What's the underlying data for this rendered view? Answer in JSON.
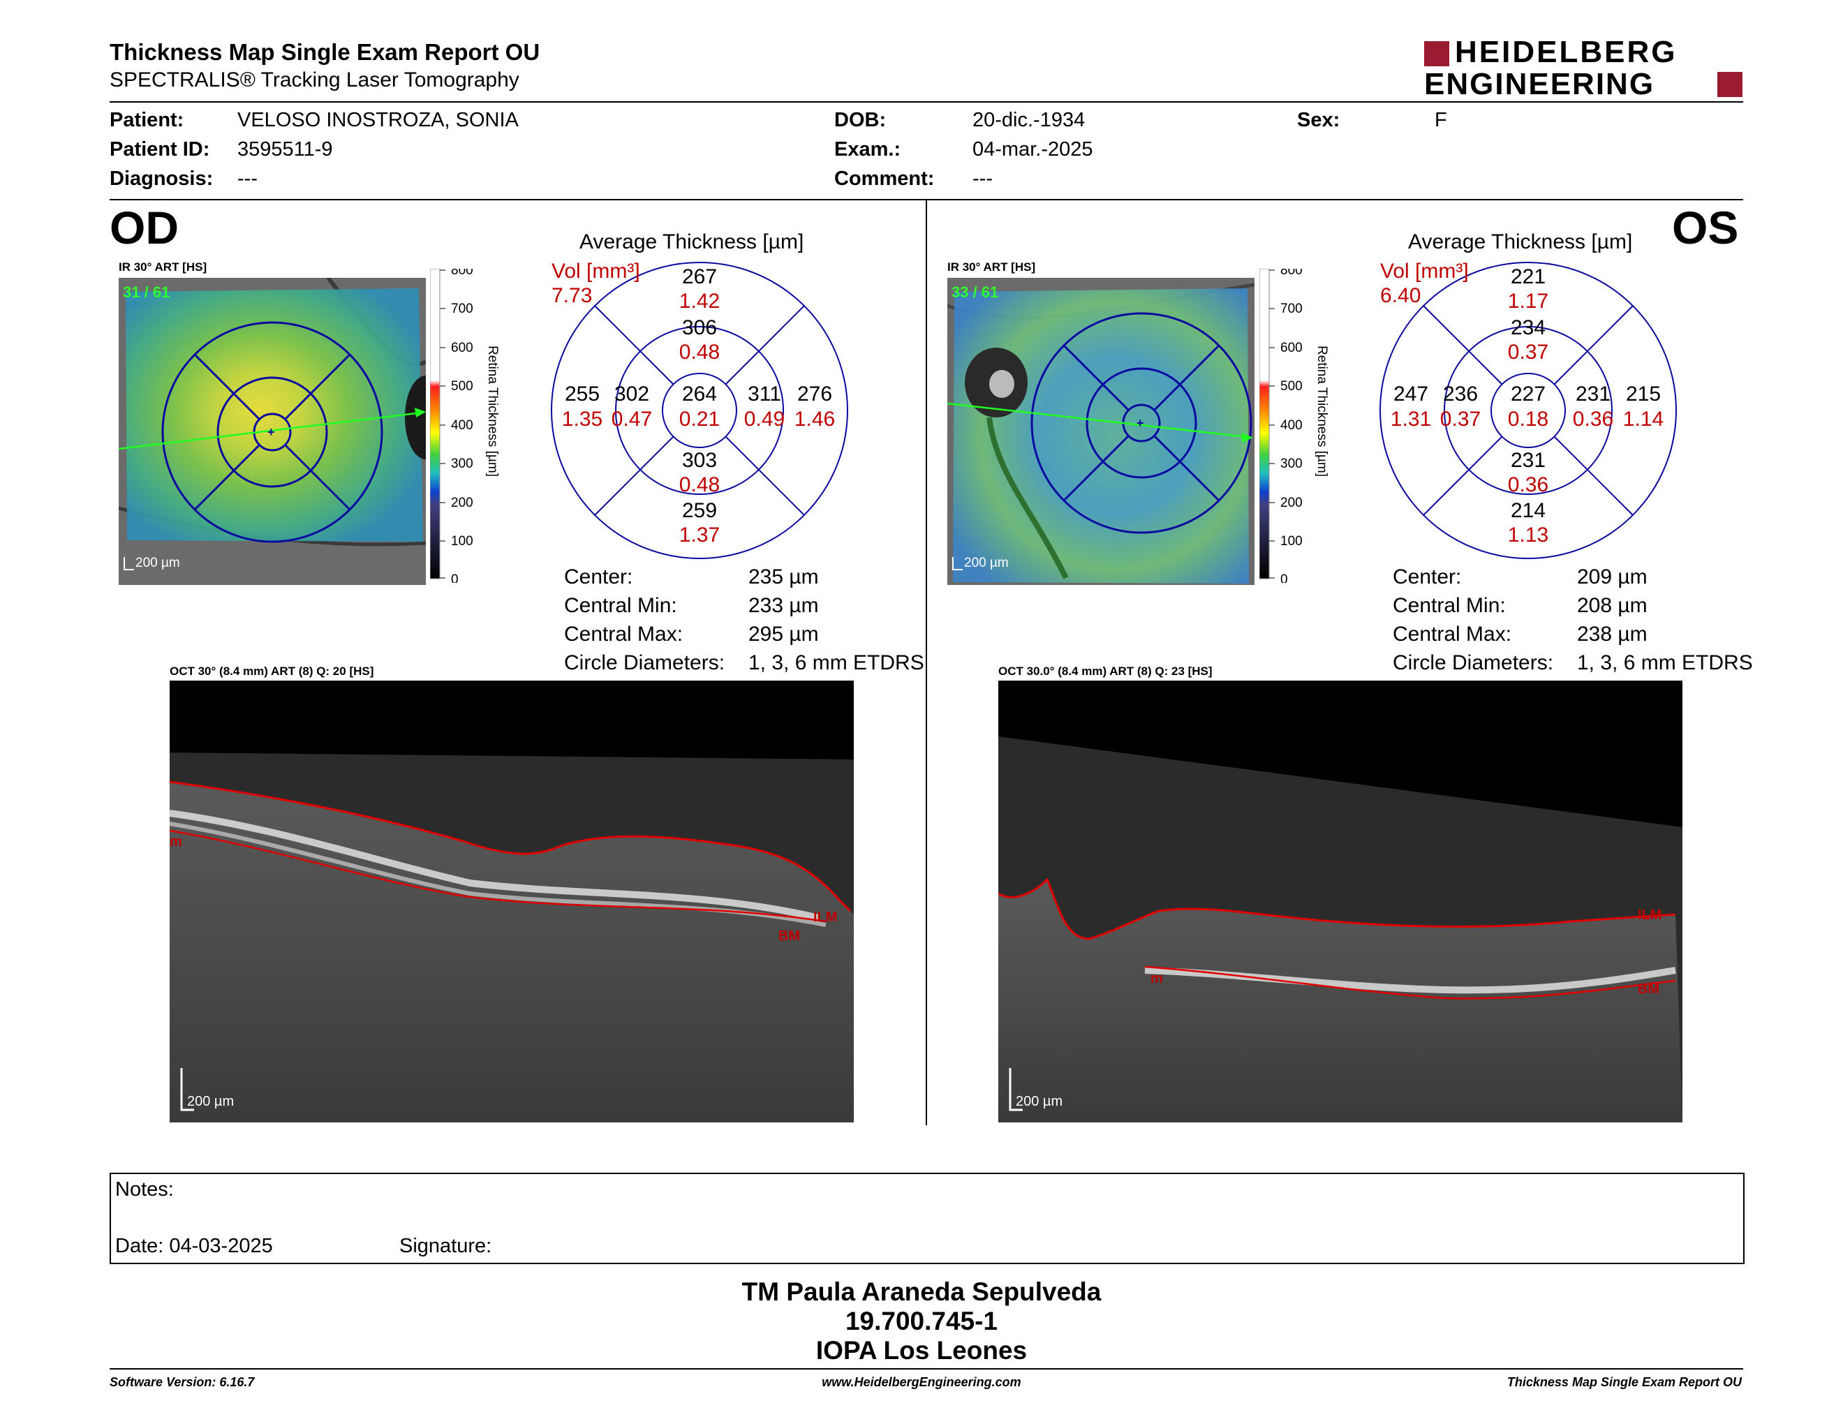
{
  "header": {
    "title": "Thickness Map Single Exam Report OU",
    "subtitle": "SPECTRALIS® Tracking Laser Tomography",
    "logo_line1": "HEIDELBERG",
    "logo_line2": "ENGINEERING"
  },
  "patient": {
    "patient_label": "Patient:",
    "patient_value": "VELOSO INOSTROZA, SONIA",
    "id_label": "Patient ID:",
    "id_value": "3595511-9",
    "diag_label": "Diagnosis:",
    "diag_value": "---",
    "dob_label": "DOB:",
    "dob_value": "20-dic.-1934",
    "exam_label": "Exam.:",
    "exam_value": "04-mar.-2025",
    "comment_label": "Comment:",
    "comment_value": "---",
    "sex_label": "Sex:",
    "sex_value": "F"
  },
  "colorbar": {
    "ticks": [
      "800",
      "700",
      "600",
      "500",
      "400",
      "300",
      "200",
      "100",
      "0"
    ],
    "title": "Retina Thickness [µm]"
  },
  "od": {
    "eye": "OD",
    "ir_title": "IR 30° ART [HS]",
    "frame_count": "31 / 61",
    "scale": "200 µm",
    "avg_title": "Average Thickness [µm]",
    "vol_label": "Vol [mm³]",
    "vol_total": "7.73",
    "sectors": {
      "outer_sup": {
        "t": "267",
        "v": "1.42"
      },
      "inner_sup": {
        "t": "306",
        "v": "0.48"
      },
      "outer_left": {
        "t": "255",
        "v": "1.35"
      },
      "inner_left": {
        "t": "302",
        "v": "0.47"
      },
      "center": {
        "t": "264",
        "v": "0.21"
      },
      "inner_right": {
        "t": "311",
        "v": "0.49"
      },
      "outer_right": {
        "t": "276",
        "v": "1.46"
      },
      "inner_inf": {
        "t": "303",
        "v": "0.48"
      },
      "outer_inf": {
        "t": "259",
        "v": "1.37"
      }
    },
    "stats": {
      "center_label": "Center:",
      "center_value": "235 µm",
      "min_label": "Central Min:",
      "min_value": "233 µm",
      "max_label": "Central Max:",
      "max_value": "295 µm",
      "circ_label": "Circle Diameters:",
      "circ_value": "1, 3, 6 mm ETDRS"
    },
    "oct_title": "OCT 30° (8.4 mm) ART (8) Q: 20 [HS]",
    "oct_scale": "200 µm",
    "oct_labels": {
      "m": "m",
      "ilm": "ILM",
      "bm": "BM"
    }
  },
  "os": {
    "eye": "OS",
    "ir_title": "IR 30° ART [HS]",
    "frame_count": "33 / 61",
    "scale": "200 µm",
    "avg_title": "Average Thickness [µm]",
    "vol_label": "Vol [mm³]",
    "vol_total": "6.40",
    "sectors": {
      "outer_sup": {
        "t": "221",
        "v": "1.17"
      },
      "inner_sup": {
        "t": "234",
        "v": "0.37"
      },
      "outer_left": {
        "t": "247",
        "v": "1.31"
      },
      "inner_left": {
        "t": "236",
        "v": "0.37"
      },
      "center": {
        "t": "227",
        "v": "0.18"
      },
      "inner_right": {
        "t": "231",
        "v": "0.36"
      },
      "outer_right": {
        "t": "215",
        "v": "1.14"
      },
      "inner_inf": {
        "t": "231",
        "v": "0.36"
      },
      "outer_inf": {
        "t": "214",
        "v": "1.13"
      }
    },
    "stats": {
      "center_label": "Center:",
      "center_value": "209 µm",
      "min_label": "Central Min:",
      "min_value": "208 µm",
      "max_label": "Central Max:",
      "max_value": "238 µm",
      "circ_label": "Circle Diameters:",
      "circ_value": "1, 3, 6 mm ETDRS"
    },
    "oct_title": "OCT 30.0° (8.4 mm) ART (8) Q: 23 [HS]",
    "oct_scale": "200 µm",
    "oct_labels": {
      "m": "m",
      "ilm": "ILM",
      "bm": "BM"
    }
  },
  "notes": {
    "notes_label": "Notes:",
    "date_label": "Date: 04-03-2025",
    "signature_label": "Signature:"
  },
  "signoff": {
    "name": "TM Paula Araneda Sepulveda",
    "rut": "19.700.745-1",
    "institution": "IOPA Los Leones"
  },
  "footer": {
    "software": "Software Version: 6.16.7",
    "website": "www.HeidelbergEngineering.com",
    "report": "Thickness Map Single Exam Report OU"
  },
  "colors": {
    "accent_red": "#c00000",
    "logo_red": "#9b1b30",
    "grid_blue": "#0000a0"
  }
}
